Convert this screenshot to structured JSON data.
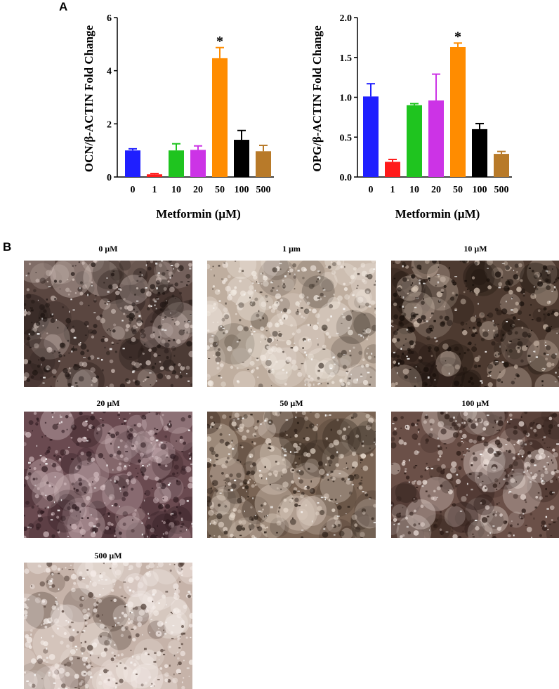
{
  "panels": {
    "a": "A",
    "b": "B"
  },
  "chart_data": [
    {
      "type": "bar",
      "xlabel": "Metformin (μM)",
      "ylabel": "OCN/β-ACTIN Fold Change",
      "categories": [
        "0",
        "1",
        "10",
        "20",
        "50",
        "100",
        "500"
      ],
      "values": [
        1.0,
        0.1,
        1.0,
        1.02,
        4.47,
        1.4,
        0.97
      ],
      "errors": [
        0.06,
        0.03,
        0.25,
        0.15,
        0.4,
        0.35,
        0.22
      ],
      "significance": [
        "",
        "",
        "",
        "",
        "*",
        "",
        ""
      ],
      "ylim": [
        0,
        6
      ],
      "yticks": [
        0,
        2,
        4,
        6
      ],
      "colors": [
        "#1f1fff",
        "#ff1a1a",
        "#1fc41f",
        "#cc33e6",
        "#ff8c00",
        "#000000",
        "#b87a29"
      ]
    },
    {
      "type": "bar",
      "xlabel": "Metformin (μM)",
      "ylabel": "OPG/β-ACTIN Fold Change",
      "categories": [
        "0",
        "1",
        "10",
        "20",
        "50",
        "100",
        "500"
      ],
      "values": [
        1.01,
        0.19,
        0.9,
        0.96,
        1.63,
        0.6,
        0.29
      ],
      "errors": [
        0.16,
        0.03,
        0.02,
        0.33,
        0.05,
        0.07,
        0.03
      ],
      "significance": [
        "",
        "",
        "",
        "",
        "*",
        "",
        ""
      ],
      "ylim": [
        0,
        2.0
      ],
      "yticks": [
        0.0,
        0.5,
        1.0,
        1.5,
        2.0
      ],
      "colors": [
        "#1f1fff",
        "#ff1a1a",
        "#1fc41f",
        "#cc33e6",
        "#ff8c00",
        "#000000",
        "#b87a29"
      ]
    }
  ],
  "micrographs": [
    {
      "label": "0 μM",
      "base": "#5a4640",
      "light": "#d9c9c2",
      "dark": "#1e1512",
      "density": 0.55
    },
    {
      "label": "1 μm",
      "base": "#bfae9f",
      "light": "#f4ece4",
      "dark": "#4a3f36",
      "density": 0.25
    },
    {
      "label": "10 μM",
      "base": "#4d3a30",
      "light": "#d8c6b6",
      "dark": "#150d08",
      "density": 0.6
    },
    {
      "label": "20 μM",
      "base": "#6a4a50",
      "light": "#d6c0c3",
      "dark": "#2a171c",
      "density": 0.5
    },
    {
      "label": "50 μM",
      "base": "#7a6454",
      "light": "#e6d8cb",
      "dark": "#2c2018",
      "density": 0.45
    },
    {
      "label": "100 μM",
      "base": "#6b5048",
      "light": "#efe2dc",
      "dark": "#2a1a15",
      "density": 0.45
    },
    {
      "label": "500 μM",
      "base": "#c6b3a9",
      "light": "#f7efeb",
      "dark": "#4f3d35",
      "density": 0.25
    }
  ]
}
